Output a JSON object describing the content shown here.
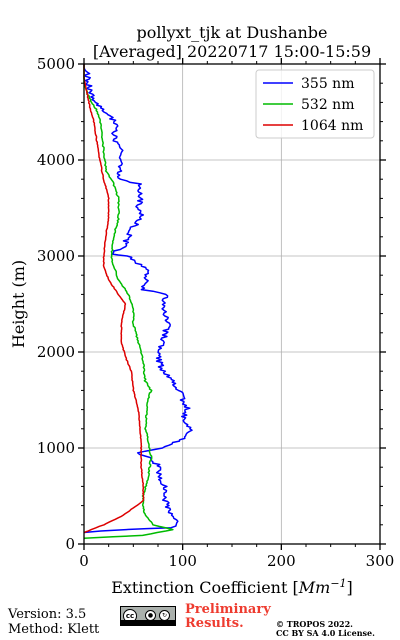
{
  "chart_data": {
    "type": "line",
    "title_line1": "pollyxt_tjk at Dushanbe",
    "title_line2": "[Averaged] 20220717 15:00-15:59",
    "xlabel": "Extinction Coefficient [",
    "xlabel_unit": "Mm",
    "xlabel_exp": "−1",
    "xlabel_end": "]",
    "ylabel": "Height (m)",
    "xlim": [
      0,
      300
    ],
    "ylim": [
      0,
      5000
    ],
    "x_ticks": [
      "0",
      "100",
      "200",
      "300"
    ],
    "y_ticks": [
      "0",
      "1000",
      "2000",
      "3000",
      "4000",
      "5000"
    ],
    "grid": true,
    "legend_position": "top-right",
    "series": [
      {
        "name": "355 nm",
        "color": "#0000ff",
        "points": [
          [
            0,
            120
          ],
          [
            40,
            150
          ],
          [
            90,
            170
          ],
          [
            95,
            220
          ],
          [
            88,
            300
          ],
          [
            85,
            400
          ],
          [
            80,
            500
          ],
          [
            82,
            600
          ],
          [
            75,
            700
          ],
          [
            78,
            800
          ],
          [
            65,
            900
          ],
          [
            55,
            950
          ],
          [
            80,
            1000
          ],
          [
            100,
            1100
          ],
          [
            108,
            1200
          ],
          [
            100,
            1300
          ],
          [
            105,
            1400
          ],
          [
            100,
            1500
          ],
          [
            97,
            1600
          ],
          [
            90,
            1700
          ],
          [
            80,
            1800
          ],
          [
            75,
            1950
          ],
          [
            80,
            2100
          ],
          [
            85,
            2300
          ],
          [
            80,
            2450
          ],
          [
            82,
            2600
          ],
          [
            60,
            2650
          ],
          [
            65,
            2850
          ],
          [
            45,
            3000
          ],
          [
            28,
            3020
          ],
          [
            40,
            3100
          ],
          [
            45,
            3200
          ],
          [
            50,
            3300
          ],
          [
            58,
            3400
          ],
          [
            55,
            3500
          ],
          [
            58,
            3650
          ],
          [
            55,
            3750
          ],
          [
            38,
            3800
          ],
          [
            35,
            3900
          ],
          [
            38,
            4100
          ],
          [
            30,
            4200
          ],
          [
            32,
            4400
          ],
          [
            20,
            4500
          ],
          [
            12,
            4600
          ],
          [
            6,
            4700
          ],
          [
            5,
            4800
          ],
          [
            3,
            4900
          ],
          [
            0,
            4960
          ],
          [
            0,
            5000
          ]
        ]
      },
      {
        "name": "532 nm",
        "color": "#00bb00",
        "points": [
          [
            0,
            60
          ],
          [
            60,
            90
          ],
          [
            90,
            150
          ],
          [
            70,
            200
          ],
          [
            62,
            300
          ],
          [
            60,
            400
          ],
          [
            60,
            500
          ],
          [
            65,
            700
          ],
          [
            68,
            900
          ],
          [
            65,
            1100
          ],
          [
            62,
            1200
          ],
          [
            65,
            1500
          ],
          [
            68,
            1600
          ],
          [
            62,
            1700
          ],
          [
            60,
            1900
          ],
          [
            55,
            2100
          ],
          [
            50,
            2300
          ],
          [
            50,
            2450
          ],
          [
            45,
            2600
          ],
          [
            35,
            2750
          ],
          [
            30,
            2900
          ],
          [
            28,
            3000
          ],
          [
            30,
            3200
          ],
          [
            35,
            3400
          ],
          [
            35,
            3600
          ],
          [
            30,
            3750
          ],
          [
            22,
            3900
          ],
          [
            20,
            4100
          ],
          [
            18,
            4300
          ],
          [
            14,
            4500
          ],
          [
            8,
            4600
          ],
          [
            3,
            4700
          ],
          [
            0,
            4800
          ],
          [
            0,
            5000
          ]
        ]
      },
      {
        "name": "1064 nm",
        "color": "#dd0000",
        "points": [
          [
            0,
            120
          ],
          [
            20,
            200
          ],
          [
            40,
            300
          ],
          [
            60,
            450
          ],
          [
            60,
            600
          ],
          [
            58,
            800
          ],
          [
            58,
            1000
          ],
          [
            57,
            1200
          ],
          [
            55,
            1400
          ],
          [
            50,
            1600
          ],
          [
            48,
            1800
          ],
          [
            42,
            1950
          ],
          [
            38,
            2100
          ],
          [
            38,
            2300
          ],
          [
            42,
            2500
          ],
          [
            35,
            2600
          ],
          [
            25,
            2750
          ],
          [
            20,
            2900
          ],
          [
            20,
            3000
          ],
          [
            22,
            3200
          ],
          [
            25,
            3400
          ],
          [
            25,
            3600
          ],
          [
            20,
            3800
          ],
          [
            16,
            4000
          ],
          [
            13,
            4200
          ],
          [
            10,
            4400
          ],
          [
            6,
            4550
          ],
          [
            3,
            4700
          ],
          [
            0,
            4850
          ],
          [
            0,
            5000
          ]
        ]
      }
    ]
  },
  "footer": {
    "version": "Version: 3.5",
    "method": "Method: Klett",
    "license_badge": "cc",
    "license_badge_sub": "BY  SA",
    "preliminary_line1": "Preliminary",
    "preliminary_line2": "Results.",
    "copyright_line1": "© TROPOS 2022.",
    "copyright_line2": "CC BY SA 4.0 License."
  }
}
